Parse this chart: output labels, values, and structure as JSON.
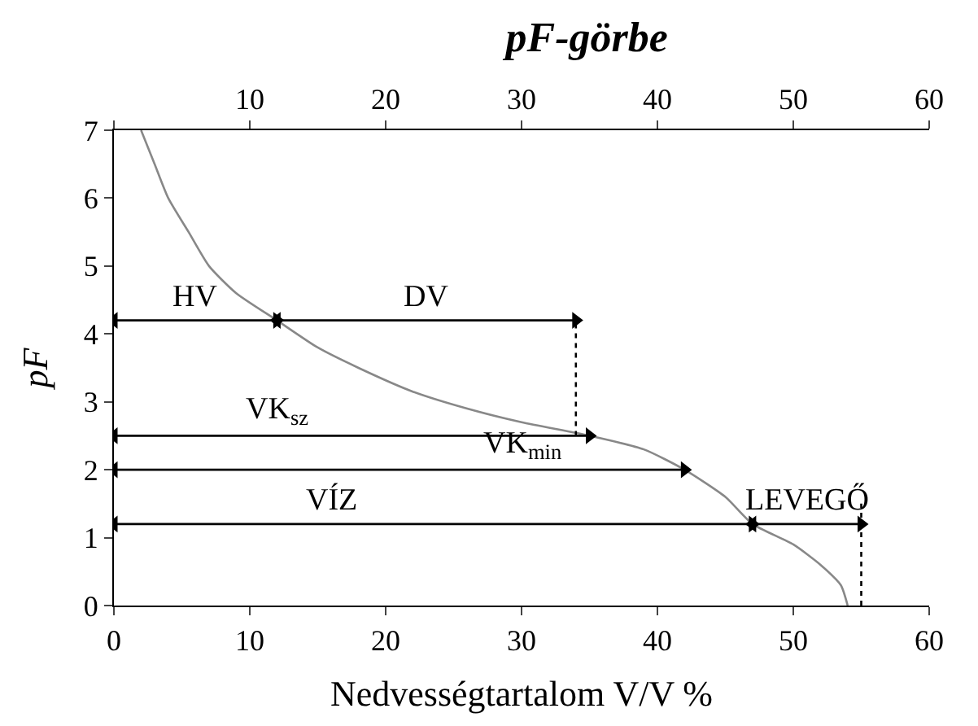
{
  "chart_data": {
    "type": "line",
    "title": "pF-görbe",
    "xlabel": "Nedvességtartalom V/V %",
    "ylabel": "pF",
    "xlim": [
      0,
      60
    ],
    "xticks": [
      0,
      10,
      20,
      30,
      40,
      50,
      60
    ],
    "x2lim": [
      0,
      60
    ],
    "x2ticks": [
      {
        "value": 0,
        "label": null
      },
      10,
      20,
      30,
      40,
      50,
      60
    ],
    "ylim": [
      0,
      7
    ],
    "yticks": [
      0,
      1,
      2,
      3,
      4,
      5,
      6,
      7
    ],
    "legend": false,
    "series": [
      {
        "color": "#888888",
        "x": [
          2,
          3,
          4,
          5.5,
          7,
          9,
          12,
          15,
          18,
          22,
          26,
          30,
          35,
          39,
          42,
          45,
          47,
          50,
          52,
          53.5,
          54
        ],
        "values": [
          7,
          6.5,
          6,
          5.5,
          5,
          4.6,
          4.2,
          3.8,
          3.5,
          3.15,
          2.9,
          2.7,
          2.5,
          2.3,
          2,
          1.6,
          1.2,
          0.9,
          0.6,
          0.3,
          0
        ]
      },
      {
        "color": "#000000",
        "marker": "triangle",
        "x": [
          0,
          12
        ],
        "values": [
          4.2,
          4.2
        ]
      },
      {
        "color": "#000000",
        "marker": "triangle",
        "x": [
          12,
          34
        ],
        "values": [
          4.2,
          4.2
        ]
      },
      {
        "color": "#000000",
        "marker": "triangle",
        "x": [
          0,
          35
        ],
        "values": [
          2.5,
          2.5
        ]
      },
      {
        "color": "#000000",
        "marker": "triangle",
        "x": [
          0,
          42
        ],
        "values": [
          2,
          2
        ]
      },
      {
        "color": "#000000",
        "marker": "triangle",
        "x": [
          0,
          47
        ],
        "values": [
          1.2,
          1.2
        ]
      },
      {
        "color": "#000000",
        "marker": "triangle",
        "x": [
          47,
          55
        ],
        "values": [
          1.2,
          1.2
        ]
      },
      {
        "color": "#000000",
        "line_style": "dotted",
        "x": [
          34,
          34
        ],
        "values": [
          2.5,
          4.2
        ]
      },
      {
        "color": "#000000",
        "line_style": "dotted",
        "x": [
          55,
          55
        ],
        "values": [
          0,
          1.5
        ]
      }
    ],
    "annotations": [
      {
        "text": "HV",
        "x": 6,
        "y": 4.2
      },
      {
        "text": "DV",
        "x": 23,
        "y": 4.2
      },
      {
        "text": "VK$_{sz}$",
        "x": 12,
        "y": 2.5
      },
      {
        "text": "VK$_{min}$",
        "x": 30,
        "y": 2
      },
      {
        "text": "VÍZ",
        "x": 16,
        "y": 1.2
      },
      {
        "text": "LEVEGŐ",
        "x": 51,
        "y": 1.2
      }
    ]
  }
}
